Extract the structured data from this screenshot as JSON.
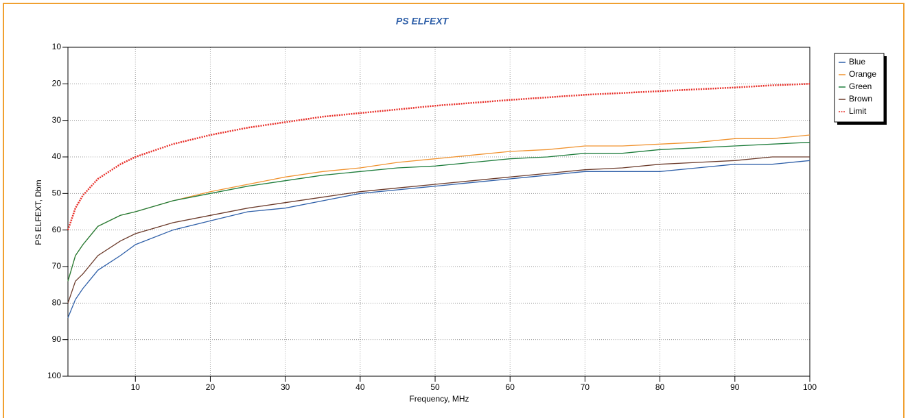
{
  "chart_data": {
    "type": "line",
    "title": "PS ELFEXT",
    "x_label": "Frequency, MHz",
    "y_label": "PS ELFEXT, Dbm",
    "x": [
      1,
      2,
      3,
      5,
      8,
      10,
      15,
      20,
      25,
      30,
      35,
      40,
      45,
      50,
      55,
      60,
      65,
      70,
      75,
      80,
      85,
      90,
      95,
      100
    ],
    "series": [
      {
        "name": "Blue",
        "color": "#2e5fa8",
        "style": "solid",
        "values": [
          84,
          79,
          76,
          71,
          67,
          64,
          60,
          57.5,
          55,
          54,
          52,
          50,
          49,
          48,
          47,
          46,
          45,
          44,
          44,
          44,
          43,
          42,
          42,
          41
        ]
      },
      {
        "name": "Orange",
        "color": "#f0922e",
        "style": "solid",
        "values": [
          74,
          67,
          64,
          59,
          56,
          55,
          52,
          49.5,
          47.5,
          45.5,
          44,
          43,
          41.5,
          40.5,
          39.5,
          38.5,
          38,
          37,
          37,
          36.5,
          36,
          35,
          35,
          34
        ]
      },
      {
        "name": "Green",
        "color": "#1e7d3c",
        "style": "solid",
        "values": [
          74,
          67,
          64,
          59,
          56,
          55,
          52,
          50,
          48,
          46.5,
          45,
          44,
          43,
          42.5,
          41.5,
          40.5,
          40,
          39,
          39,
          38,
          37.5,
          37,
          36.5,
          36
        ]
      },
      {
        "name": "Brown",
        "color": "#6b3a2a",
        "style": "solid",
        "values": [
          80,
          74,
          72,
          67,
          63,
          61,
          58,
          56,
          54,
          52.5,
          51,
          49.5,
          48.5,
          47.5,
          46.5,
          45.5,
          44.5,
          43.5,
          43,
          42,
          41.5,
          41,
          40,
          40
        ]
      },
      {
        "name": "Limit",
        "color": "#e8302a",
        "style": "dotted",
        "values": [
          60,
          54,
          50.5,
          46,
          42,
          40,
          36.5,
          34,
          32,
          30.5,
          29,
          28,
          27,
          26,
          25.2,
          24.4,
          23.7,
          23,
          22.5,
          22,
          21.5,
          21,
          20.4,
          20
        ]
      }
    ],
    "xlim": [
      1,
      100
    ],
    "xticks": [
      10,
      20,
      30,
      40,
      50,
      60,
      70,
      80,
      90,
      100
    ],
    "ylim": [
      100,
      10
    ],
    "yticks": [
      10,
      20,
      30,
      40,
      50,
      60,
      70,
      80,
      90,
      100
    ],
    "grid": true,
    "legend": "right"
  }
}
